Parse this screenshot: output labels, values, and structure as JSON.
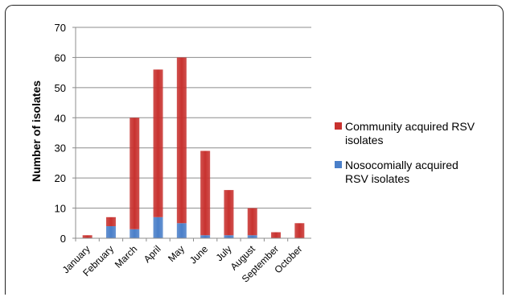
{
  "chart_data": {
    "type": "bar",
    "stacked": true,
    "categories": [
      "January",
      "February",
      "March",
      "April",
      "May",
      "June",
      "July",
      "August",
      "September",
      "October"
    ],
    "series": [
      {
        "name": "Nosocomially acquired RSV isolates",
        "color": "#4a7fc9",
        "values": [
          0,
          4,
          3,
          7,
          5,
          1,
          1,
          1,
          0,
          0
        ]
      },
      {
        "name": "Community acquired RSV isolates",
        "color": "#c8322f",
        "values": [
          1,
          3,
          37,
          49,
          55,
          28,
          15,
          9,
          2,
          5
        ]
      }
    ],
    "legend_order": [
      1,
      0
    ],
    "legend_lines": [
      [
        "Community acquired RSV",
        "isolates"
      ],
      [
        "Nosocomially acquired",
        "RSV isolates"
      ]
    ],
    "totals": [
      1,
      7,
      40,
      56,
      60,
      29,
      16,
      10,
      2,
      5
    ],
    "xlabel": "",
    "ylabel": "Number of isolates",
    "ylim": [
      0,
      70
    ],
    "yticks": [
      0,
      10,
      20,
      30,
      40,
      50,
      60,
      70
    ],
    "grid": true,
    "legend_position": "right"
  }
}
